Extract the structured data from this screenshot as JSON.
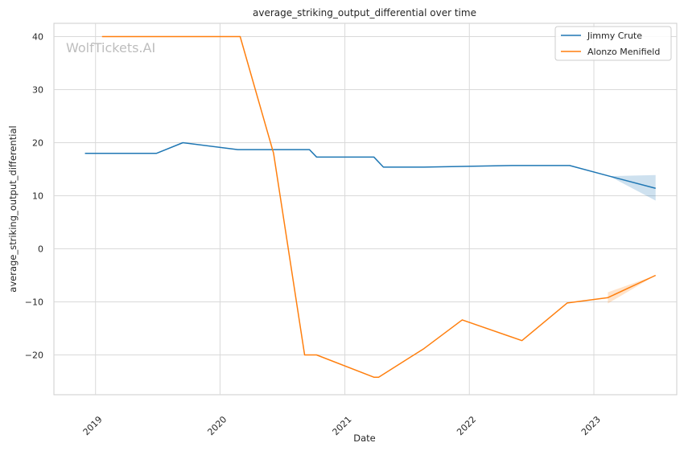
{
  "chart_data": {
    "type": "line",
    "title": "average_striking_output_differential over time",
    "xlabel": "Date",
    "ylabel": "average_striking_output_differential",
    "watermark": "WolfTickets.AI",
    "x_ticks": [
      "2019",
      "2020",
      "2021",
      "2022",
      "2023"
    ],
    "y_ticks": [
      40,
      30,
      20,
      10,
      0,
      -10,
      -20
    ],
    "xlim": [
      "2018-09-01",
      "2023-09-01"
    ],
    "ylim": [
      -27.5,
      42.5
    ],
    "grid": true,
    "legend_position": "top-right",
    "series": [
      {
        "name": "Jimmy Crute",
        "color": "#1f77b4",
        "points": [
          [
            "2018-12-01",
            18.0
          ],
          [
            "2019-06-29",
            18.0
          ],
          [
            "2019-09-14",
            20.0
          ],
          [
            "2020-02-22",
            18.7
          ],
          [
            "2020-09-19",
            18.7
          ],
          [
            "2020-10-10",
            17.3
          ],
          [
            "2021-03-27",
            17.3
          ],
          [
            "2021-04-24",
            15.4
          ],
          [
            "2021-08-21",
            15.4
          ],
          [
            "2022-05-07",
            15.7
          ],
          [
            "2022-10-22",
            15.7
          ],
          [
            "2023-02-15",
            13.7
          ],
          [
            "2023-07-01",
            11.4
          ]
        ],
        "band": [
          [
            "2023-02-15",
            13.7,
            13.7
          ],
          [
            "2023-07-01",
            9.1,
            13.9
          ]
        ]
      },
      {
        "name": "Alonzo Menifield",
        "color": "#ff7f0e",
        "points": [
          [
            "2019-01-20",
            40.0
          ],
          [
            "2020-02-29",
            40.0
          ],
          [
            "2020-06-06",
            18.0
          ],
          [
            "2020-09-05",
            -20.0
          ],
          [
            "2020-10-10",
            -20.0
          ],
          [
            "2021-03-27",
            -24.2
          ],
          [
            "2021-04-10",
            -24.2
          ],
          [
            "2021-08-21",
            -18.8
          ],
          [
            "2021-12-11",
            -13.4
          ],
          [
            "2022-06-04",
            -17.3
          ],
          [
            "2022-10-15",
            -10.2
          ],
          [
            "2023-02-11",
            -9.2
          ],
          [
            "2023-07-01",
            -5.0
          ]
        ],
        "band": [
          [
            "2023-02-11",
            -8.2,
            -10.3
          ],
          [
            "2023-07-01",
            -5.0,
            -5.0
          ]
        ]
      }
    ]
  }
}
